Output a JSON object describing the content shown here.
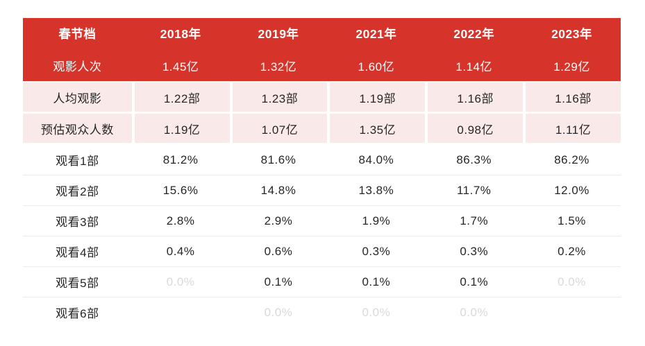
{
  "chart_data": {
    "type": "table",
    "columns": [
      "春节档",
      "2018年",
      "2019年",
      "2021年",
      "2022年",
      "2023年"
    ],
    "rows": [
      [
        "观影人次",
        "1.45亿",
        "1.32亿",
        "1.60亿",
        "1.14亿",
        "1.29亿"
      ],
      [
        "人均观影",
        "1.22部",
        "1.23部",
        "1.19部",
        "1.16部",
        "1.16部"
      ],
      [
        "预估观众人数",
        "1.19亿",
        "1.07亿",
        "1.35亿",
        "0.98亿",
        "1.11亿"
      ],
      [
        "观看1部",
        "81.2%",
        "81.6%",
        "84.0%",
        "86.3%",
        "86.2%"
      ],
      [
        "观看2部",
        "15.6%",
        "14.8%",
        "13.8%",
        "11.7%",
        "12.0%"
      ],
      [
        "观看3部",
        "2.8%",
        "2.9%",
        "1.9%",
        "1.7%",
        "1.5%"
      ],
      [
        "观看4部",
        "0.4%",
        "0.6%",
        "0.3%",
        "0.3%",
        "0.2%"
      ],
      [
        "观看5部",
        "0.0%",
        "0.1%",
        "0.1%",
        "0.1%",
        "0.0%"
      ],
      [
        "观看6部",
        "",
        "0.0%",
        "0.0%",
        "0.0%",
        ""
      ]
    ],
    "row_band_styles": [
      "red",
      "pink",
      "pink",
      "plain",
      "plain",
      "plain",
      "plain",
      "plain",
      "plain"
    ],
    "muted_cells": [
      [
        7,
        1
      ],
      [
        7,
        5
      ],
      [
        8,
        2
      ],
      [
        8,
        3
      ],
      [
        8,
        4
      ]
    ],
    "empty_cells": [
      [
        8,
        1
      ],
      [
        8,
        5
      ]
    ],
    "legend_position": "none",
    "grid": "horizontal-separators-on-plain-rows"
  },
  "colors": {
    "header_red": "#d6342b",
    "band_pink": "#f9e9e8",
    "text_dark": "#262626",
    "header_text": "#ffffff",
    "muted_gray": "#d9d9d9",
    "divider_gray": "#ececec",
    "background": "#ffffff"
  }
}
